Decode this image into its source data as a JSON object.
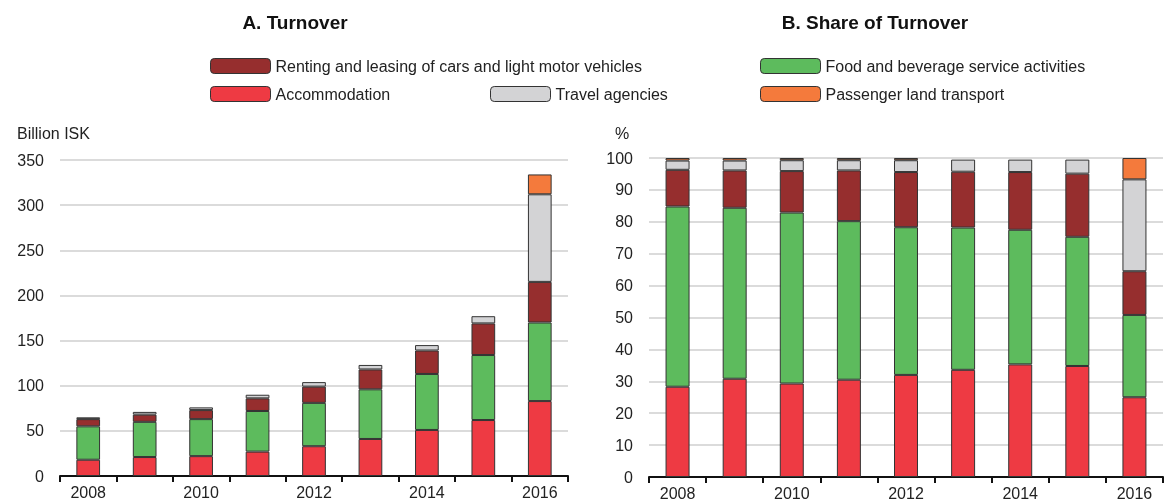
{
  "chart_data": [
    {
      "type": "bar",
      "title": "A. Turnover",
      "ylabel": "Billion ISK",
      "categories": [
        "2008",
        null,
        "2010",
        null,
        "2012",
        null,
        "2014",
        null,
        "2016"
      ],
      "stacked": true,
      "ylim": [
        0,
        350
      ],
      "yticks": [
        0,
        50,
        100,
        150,
        200,
        250,
        300,
        350
      ],
      "grid": "y",
      "legend": "top",
      "series": [
        {
          "name": "Accommodation",
          "color": "#ee3a43",
          "values": [
            18,
            21,
            22,
            27,
            33,
            41,
            51,
            62,
            83
          ]
        },
        {
          "name": "Food and beverage service activities",
          "color": "#5dbb5d",
          "values": [
            37,
            39,
            41,
            45,
            48,
            55,
            62,
            72,
            87
          ]
        },
        {
          "name": "Renting and leasing of cars and light motor vehicles",
          "color": "#962e2e",
          "values": [
            8,
            8,
            10,
            14,
            18,
            22,
            26,
            35,
            45
          ]
        },
        {
          "name": "Travel agencies",
          "color": "#d3d3d5",
          "values": [
            2,
            3,
            3,
            4,
            5,
            5,
            6,
            8,
            97
          ]
        },
        {
          "name": "Passenger land transport",
          "color": "#f47a3c",
          "values": [
            null,
            null,
            null,
            null,
            null,
            null,
            null,
            null,
            22
          ]
        }
      ]
    },
    {
      "type": "bar",
      "title": "B. Share of Turnover",
      "ylabel": "%",
      "categories": [
        "2008",
        null,
        "2010",
        null,
        "2012",
        null,
        "2014",
        null,
        "2016"
      ],
      "stacked": true,
      "ylim": [
        0,
        100
      ],
      "yticks": [
        0,
        10,
        20,
        30,
        40,
        50,
        60,
        70,
        80,
        90,
        100
      ],
      "grid": "y",
      "series": [
        {
          "color": "#ee3a43",
          "values": [
            28.3,
            30.8,
            29.3,
            30.5,
            32,
            33.6,
            35.3,
            34.8,
            25
          ]
        },
        {
          "color": "#5dbb5d",
          "values": [
            56.5,
            53.6,
            53.6,
            49.7,
            46.3,
            44.6,
            42.2,
            40.5,
            25.8
          ]
        },
        {
          "color": "#962e2e",
          "values": [
            11.5,
            11.7,
            13,
            15.9,
            17.3,
            17.5,
            18.1,
            19.8,
            13.7
          ]
        },
        {
          "color": "#d3d3d5",
          "values": [
            2.9,
            3.1,
            3.4,
            3.2,
            3.7,
            3.8,
            3.9,
            4.4,
            28.8
          ]
        },
        {
          "color": "#f47a3c",
          "values": [
            0.8,
            0.8,
            0.7,
            0.7,
            0.7,
            null,
            null,
            null,
            6.7
          ]
        }
      ]
    }
  ]
}
